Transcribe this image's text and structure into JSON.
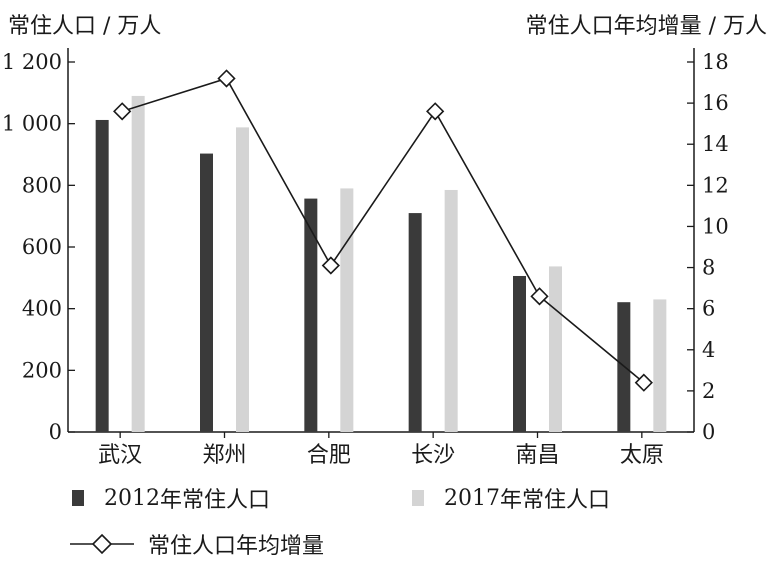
{
  "chart_data": {
    "type": "bar",
    "categories": [
      "武汉",
      "郑州",
      "合肥",
      "长沙",
      "南昌",
      "太原"
    ],
    "series": [
      {
        "name": "2012 年常住人口",
        "kind": "bar",
        "axis": "left",
        "color": "#3a3a3a",
        "values": [
          1012,
          903,
          757,
          710,
          506,
          421
        ]
      },
      {
        "name": "2017 年常住人口",
        "kind": "bar",
        "axis": "left",
        "color": "#d4d4d4",
        "values": [
          1090,
          988,
          790,
          785,
          537,
          430
        ]
      },
      {
        "name": "常住人口年均增量",
        "kind": "line",
        "axis": "right",
        "color": "#1a1a1a",
        "values": [
          15.6,
          17.2,
          8.1,
          15.6,
          6.6,
          2.4
        ]
      }
    ],
    "ylabel_left": "常住人口 / 万人",
    "ylabel_right": "常住人口年均增量 / 万人",
    "ylim_left": [
      0,
      1200
    ],
    "yticks_left": [
      "0",
      "200",
      "400",
      "600",
      "800",
      "1 000",
      "1 200"
    ],
    "ylim_right": [
      0,
      18
    ],
    "yticks_right": [
      "0",
      "2",
      "4",
      "6",
      "8",
      "10",
      "12",
      "14",
      "16",
      "18"
    ],
    "legend": [
      {
        "label_num": "2012",
        "label_rest": " 年常住人口",
        "marker": "bar-dark"
      },
      {
        "label_num": "2017",
        "label_rest": " 年常住人口",
        "marker": "bar-light"
      },
      {
        "label": "常住人口年均增量",
        "marker": "line-diamond"
      }
    ]
  }
}
